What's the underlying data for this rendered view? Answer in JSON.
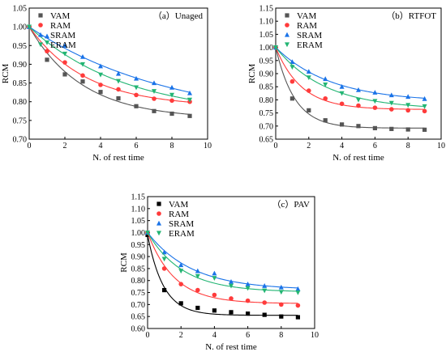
{
  "chart_data": [
    {
      "type": "scatter",
      "title": "（a）Unaged",
      "xlabel": "N. of rest time",
      "ylabel": "RCM",
      "xlim": [
        0,
        10
      ],
      "ylim": [
        0.7,
        1.05
      ],
      "xticks": [
        "0",
        "2",
        "4",
        "6",
        "8",
        "10"
      ],
      "yticks": [
        "0.70",
        "0.75",
        "0.80",
        "0.85",
        "0.90",
        "0.95",
        "1.00",
        "1.05"
      ],
      "legend": "top-left",
      "series": [
        {
          "name": "VAM",
          "color": "#555555",
          "marker": "square",
          "x": [
            0,
            1,
            2,
            3,
            4,
            5,
            6,
            7,
            8,
            9
          ],
          "y": [
            1.0,
            0.912,
            0.873,
            0.854,
            0.826,
            0.809,
            0.788,
            0.775,
            0.768,
            0.762
          ]
        },
        {
          "name": "RAM",
          "color": "#ff3b3b",
          "marker": "circle",
          "x": [
            0,
            1,
            2,
            3,
            4,
            5,
            6,
            7,
            8,
            9
          ],
          "y": [
            1.0,
            0.935,
            0.905,
            0.87,
            0.845,
            0.833,
            0.818,
            0.808,
            0.803,
            0.8
          ]
        },
        {
          "name": "SRAM",
          "color": "#1a73e8",
          "marker": "triangle-up",
          "x": [
            0,
            1,
            2,
            3,
            4,
            5,
            6,
            7,
            8,
            9
          ],
          "y": [
            1.0,
            0.975,
            0.95,
            0.92,
            0.895,
            0.875,
            0.862,
            0.85,
            0.838,
            0.823
          ]
        },
        {
          "name": "ERAM",
          "color": "#22b573",
          "marker": "triangle-down",
          "x": [
            0,
            1,
            2,
            3,
            4,
            5,
            6,
            7,
            8,
            9
          ],
          "y": [
            1.0,
            0.958,
            0.928,
            0.9,
            0.872,
            0.855,
            0.838,
            0.828,
            0.818,
            0.805
          ]
        }
      ]
    },
    {
      "type": "scatter",
      "title": "（b）RTFOT",
      "xlabel": "N. of rest time",
      "ylabel": "RCM",
      "xlim": [
        0,
        10
      ],
      "ylim": [
        0.65,
        1.15
      ],
      "xticks": [
        "0",
        "2",
        "4",
        "6",
        "8",
        "10"
      ],
      "yticks": [
        "0.65",
        "0.70",
        "0.75",
        "0.80",
        "0.85",
        "0.90",
        "0.95",
        "1.00",
        "1.05",
        "1.10",
        "1.15"
      ],
      "legend": "top-left",
      "series": [
        {
          "name": "VAM",
          "color": "#555555",
          "marker": "square",
          "x": [
            0,
            1,
            2,
            3,
            4,
            5,
            6,
            7,
            8,
            9
          ],
          "y": [
            1.0,
            0.805,
            0.76,
            0.722,
            0.706,
            0.7,
            0.692,
            0.689,
            0.687,
            0.686
          ]
        },
        {
          "name": "RAM",
          "color": "#ff3b3b",
          "marker": "circle",
          "x": [
            0,
            1,
            2,
            3,
            4,
            5,
            6,
            7,
            8,
            9
          ],
          "y": [
            1.0,
            0.87,
            0.835,
            0.805,
            0.785,
            0.778,
            0.77,
            0.764,
            0.76,
            0.757
          ]
        },
        {
          "name": "SRAM",
          "color": "#1a73e8",
          "marker": "triangle-up",
          "x": [
            0,
            1,
            2,
            3,
            4,
            5,
            6,
            7,
            8,
            9
          ],
          "y": [
            1.0,
            0.945,
            0.908,
            0.88,
            0.85,
            0.838,
            0.828,
            0.818,
            0.812,
            0.804
          ]
        },
        {
          "name": "ERAM",
          "color": "#22b573",
          "marker": "triangle-down",
          "x": [
            0,
            1,
            2,
            3,
            4,
            5,
            6,
            7,
            8,
            9
          ],
          "y": [
            1.0,
            0.925,
            0.885,
            0.858,
            0.825,
            0.8,
            0.795,
            0.788,
            0.78,
            0.775
          ]
        }
      ]
    },
    {
      "type": "scatter",
      "title": "（c）PAV",
      "xlabel": "N. of rest time",
      "ylabel": "RCM",
      "xlim": [
        0,
        10
      ],
      "ylim": [
        0.6,
        1.15
      ],
      "xticks": [
        "0",
        "2",
        "4",
        "6",
        "8",
        "10"
      ],
      "yticks": [
        "0.60",
        "0.65",
        "0.70",
        "0.75",
        "0.80",
        "0.85",
        "0.90",
        "0.95",
        "1.00",
        "1.05",
        "1.10",
        "1.15"
      ],
      "legend": "top-left",
      "series": [
        {
          "name": "VAM",
          "color": "#000000",
          "marker": "square",
          "x": [
            0,
            1,
            2,
            3,
            4,
            5,
            6,
            7,
            8,
            9
          ],
          "y": [
            0.99,
            0.76,
            0.705,
            0.686,
            0.675,
            0.668,
            0.662,
            0.657,
            0.65,
            0.647
          ]
        },
        {
          "name": "RAM",
          "color": "#ff3b3b",
          "marker": "circle",
          "x": [
            0,
            1,
            2,
            3,
            4,
            5,
            6,
            7,
            8,
            9
          ],
          "y": [
            1.0,
            0.85,
            0.785,
            0.76,
            0.74,
            0.725,
            0.716,
            0.708,
            0.7,
            0.696
          ]
        },
        {
          "name": "SRAM",
          "color": "#1a73e8",
          "marker": "triangle-up",
          "x": [
            0,
            1,
            2,
            3,
            4,
            5,
            6,
            7,
            8,
            9
          ],
          "y": [
            1.0,
            0.918,
            0.865,
            0.84,
            0.83,
            0.795,
            0.785,
            0.778,
            0.772,
            0.765
          ]
        },
        {
          "name": "ERAM",
          "color": "#22b573",
          "marker": "triangle-down",
          "x": [
            0,
            1,
            2,
            3,
            4,
            5,
            6,
            7,
            8,
            9
          ],
          "y": [
            1.0,
            0.89,
            0.84,
            0.818,
            0.81,
            0.778,
            0.768,
            0.758,
            0.752,
            0.75
          ]
        }
      ]
    }
  ]
}
